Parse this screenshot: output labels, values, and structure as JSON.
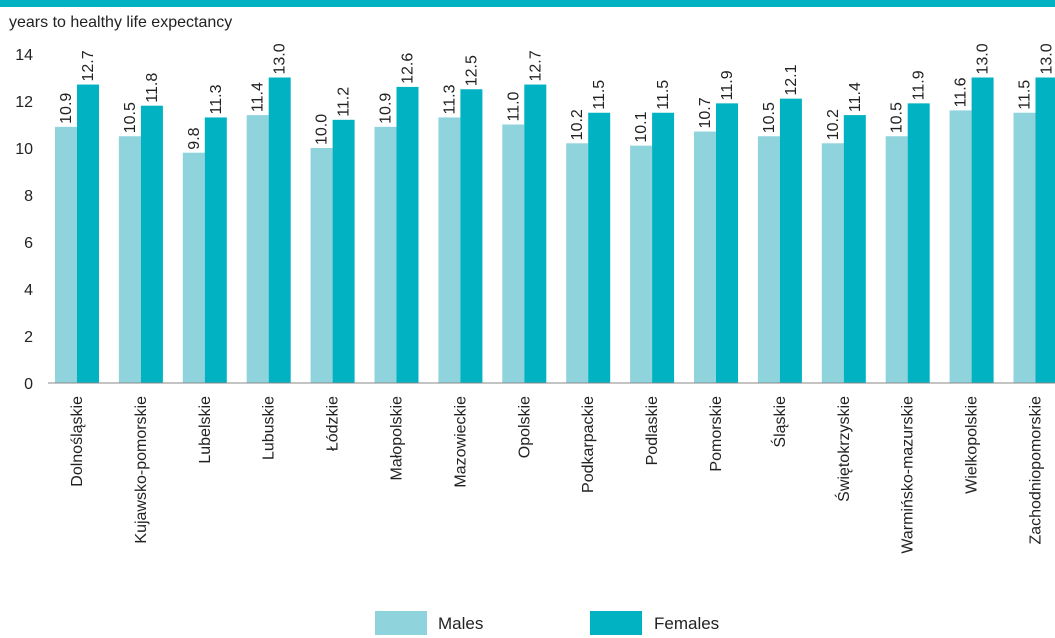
{
  "chart_data": {
    "type": "bar",
    "title": "",
    "ylabel": "years to healthy life expectancy",
    "xlabel": "",
    "ylim": [
      0,
      14
    ],
    "yticks": [
      0,
      2,
      4,
      6,
      8,
      10,
      12,
      14
    ],
    "grid": false,
    "legend_position": "bottom",
    "categories": [
      "Dolnośląskie",
      "Kujawsko-pomorskie",
      "Lubelskie",
      "Lubuskie",
      "Łódzkie",
      "Małopolskie",
      "Mazowieckie",
      "Opolskie",
      "Podkarpackie",
      "Podlaskie",
      "Pomorskie",
      "Śląskie",
      "Świętokrzyskie",
      "Warmińsko-mazurskie",
      "Wielkopolskie",
      "Zachodniopomorskie"
    ],
    "series": [
      {
        "name": "Males",
        "color": "#8fd3dc",
        "values": [
          10.9,
          10.5,
          9.8,
          11.4,
          10.0,
          10.9,
          11.3,
          11.0,
          10.2,
          10.1,
          10.7,
          10.5,
          10.2,
          10.5,
          11.6,
          11.5
        ],
        "labels": [
          "10.9",
          "10.5",
          "9.8",
          "11.4",
          "10.0",
          "10.9",
          "11.3",
          "11.0",
          "10.2",
          "10.1",
          "10.7",
          "10.5",
          "10.2",
          "10.5",
          "11.6",
          "11.5"
        ]
      },
      {
        "name": "Females",
        "color": "#00b2c2",
        "values": [
          12.7,
          11.8,
          11.3,
          13.0,
          11.2,
          12.6,
          12.5,
          12.7,
          11.5,
          11.5,
          11.9,
          12.1,
          11.4,
          11.9,
          13.0,
          13.0
        ],
        "labels": [
          "12.7",
          "11.8",
          "11.3",
          "13.0",
          "11.2",
          "12.6",
          "12.5",
          "12.7",
          "11.5",
          "11.5",
          "11.9",
          "12.1",
          "11.4",
          "11.9",
          "13.0",
          "13.0"
        ]
      }
    ]
  }
}
